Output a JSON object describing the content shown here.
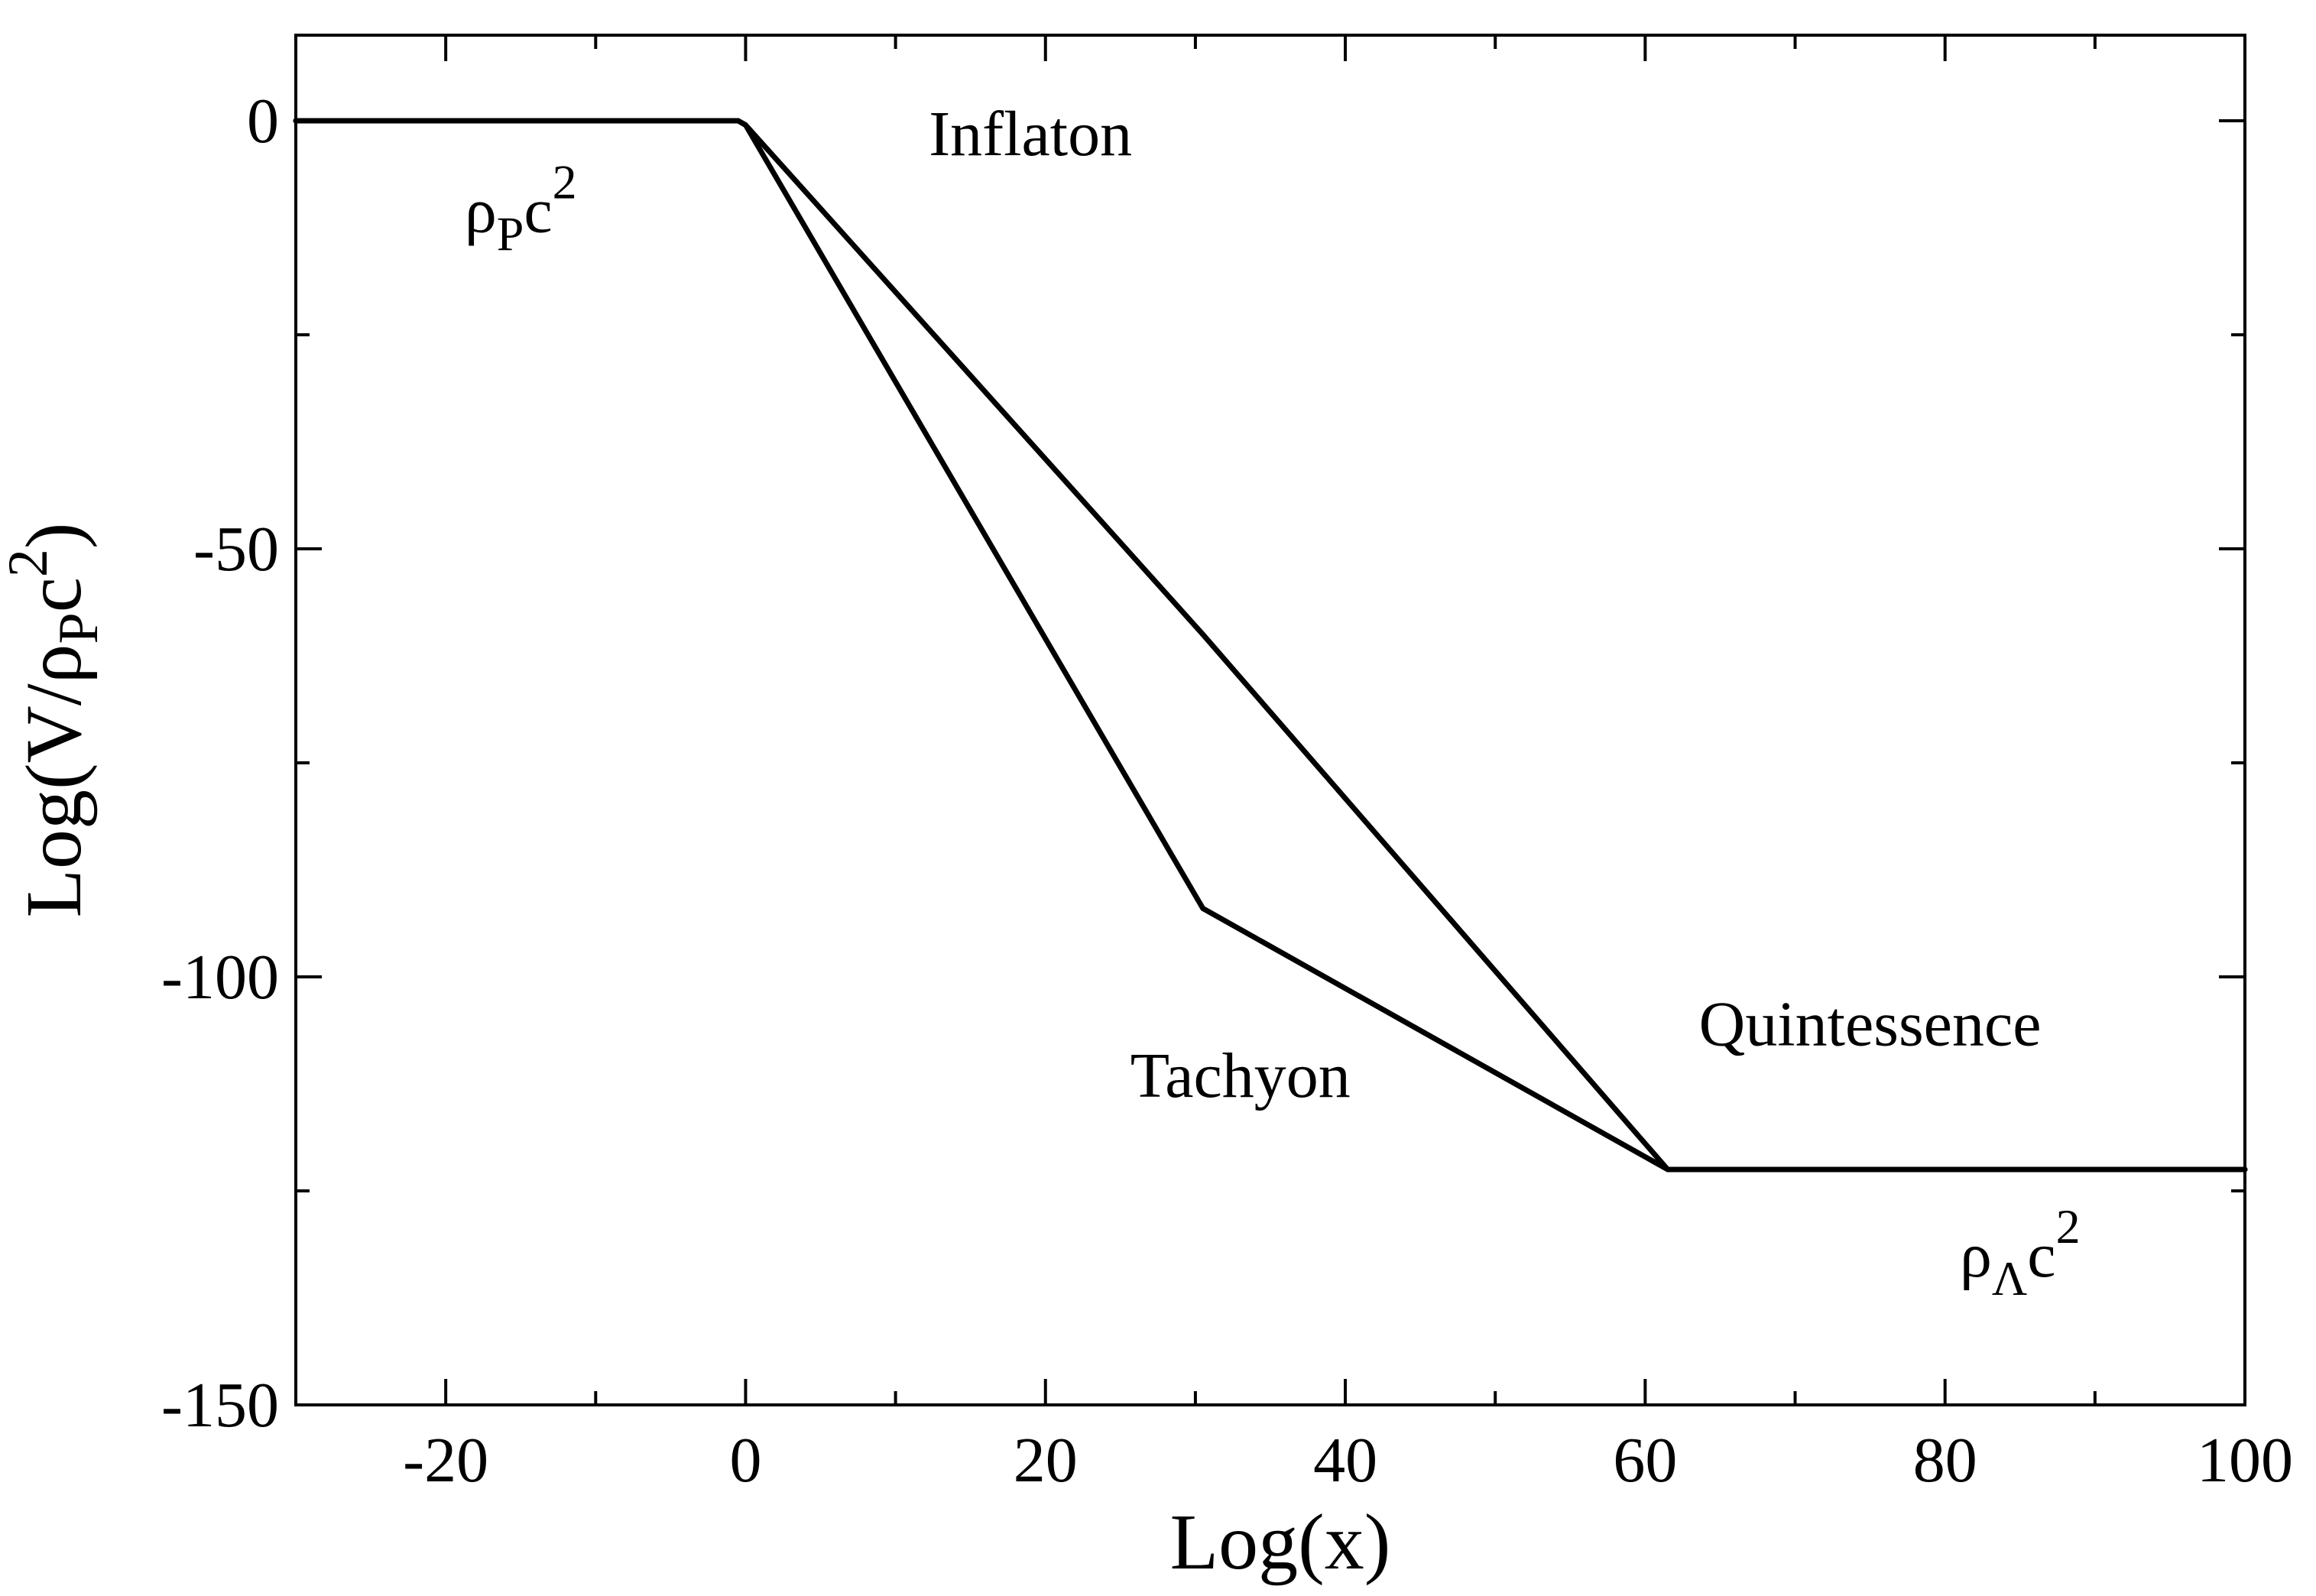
{
  "chart_data": {
    "type": "line",
    "xlabel": "Log(x)",
    "ylabel": {
      "main": "Log(V/ρ",
      "sub": "P",
      "mid": "c",
      "sup": "2",
      "close": ")"
    },
    "xlim": [
      -30,
      100
    ],
    "ylim": [
      -150,
      10
    ],
    "x_ticks": [
      -20,
      0,
      20,
      40,
      60,
      80,
      100
    ],
    "x_minor_ticks": [
      -30,
      -10,
      10,
      30,
      50,
      70,
      90
    ],
    "y_ticks": [
      0,
      -50,
      -100,
      -150
    ],
    "y_minor_ticks": [
      -25,
      -75,
      -125
    ],
    "grid": false,
    "series": [
      {
        "x": [
          -30,
          -0.5,
          0,
          30.5,
          61.5,
          100
        ],
        "y": [
          0,
          0,
          -0.5,
          -92,
          -122.5,
          -122.5
        ]
      },
      {
        "x": [
          -30,
          -0.5,
          0,
          30.5,
          61.5,
          100
        ],
        "y": [
          0,
          0,
          -0.5,
          -60,
          -122.5,
          -122.5
        ]
      }
    ],
    "annotations": [
      {
        "text": "Inflaton",
        "x": 19,
        "y": -4
      },
      {
        "text": "Tachyon",
        "x": 33,
        "y": -114
      },
      {
        "text": "Quintessence",
        "x": 75,
        "y": -108
      },
      {
        "base": "ρ",
        "sub": "P",
        "mid": "c",
        "sup": "2",
        "x": -15,
        "y": -13
      },
      {
        "base": "ρ",
        "sub": "Λ",
        "mid": "c",
        "sup": "2",
        "x": 85,
        "y": -135
      }
    ]
  }
}
